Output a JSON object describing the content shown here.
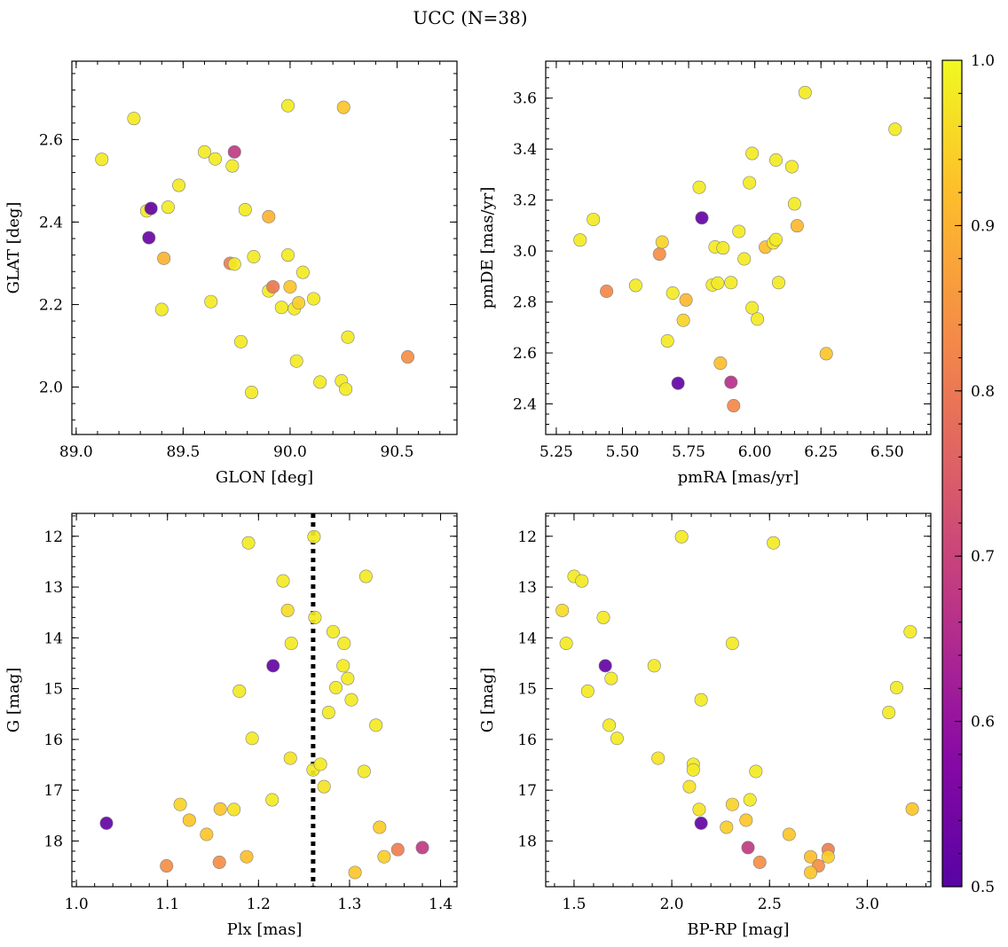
{
  "figure": {
    "title": "UCC (N=38)"
  },
  "colorbar": {
    "min": 0.5,
    "max": 1.0,
    "ticks": [
      0.5,
      0.6,
      0.7,
      0.8,
      0.9,
      1.0
    ]
  },
  "chart_data": [
    {
      "id": "radec",
      "type": "scatter",
      "xlabel": "GLON [deg]",
      "ylabel": "GLAT [deg]",
      "xlim": [
        88.98,
        90.78
      ],
      "ylim": [
        1.885,
        2.79
      ],
      "xticks": [
        89.0,
        89.5,
        90.0,
        90.5
      ],
      "xtick_decimals": 1,
      "yticks": [
        2.0,
        2.2,
        2.4,
        2.6
      ],
      "ytick_decimals": 1,
      "invert_y": false,
      "grid": false,
      "points": [
        [
          89.12,
          2.552,
          0.98
        ],
        [
          89.27,
          2.651,
          0.98
        ],
        [
          89.33,
          2.427,
          0.98
        ],
        [
          89.35,
          2.433,
          0.52
        ],
        [
          89.34,
          2.362,
          0.53
        ],
        [
          89.4,
          2.188,
          0.98
        ],
        [
          89.41,
          2.312,
          0.9
        ],
        [
          89.43,
          2.436,
          0.98
        ],
        [
          89.48,
          2.489,
          0.98
        ],
        [
          89.6,
          2.57,
          0.98
        ],
        [
          89.63,
          2.207,
          0.98
        ],
        [
          89.65,
          2.553,
          0.98
        ],
        [
          89.72,
          2.3,
          0.81
        ],
        [
          89.73,
          2.536,
          0.98
        ],
        [
          89.74,
          2.298,
          0.98
        ],
        [
          89.74,
          2.57,
          0.68
        ],
        [
          89.77,
          2.11,
          0.98
        ],
        [
          89.79,
          2.43,
          0.98
        ],
        [
          89.82,
          1.987,
          0.98
        ],
        [
          89.83,
          2.316,
          0.98
        ],
        [
          89.9,
          2.413,
          0.9
        ],
        [
          89.9,
          2.233,
          0.98
        ],
        [
          89.92,
          2.243,
          0.8
        ],
        [
          89.96,
          2.193,
          0.98
        ],
        [
          89.99,
          2.682,
          0.98
        ],
        [
          89.99,
          2.32,
          0.98
        ],
        [
          90.0,
          2.243,
          0.93
        ],
        [
          90.02,
          2.19,
          0.98
        ],
        [
          90.03,
          2.063,
          0.98
        ],
        [
          90.04,
          2.204,
          0.94
        ],
        [
          90.06,
          2.278,
          0.98
        ],
        [
          90.11,
          2.214,
          0.98
        ],
        [
          90.14,
          2.012,
          0.98
        ],
        [
          90.24,
          2.015,
          0.98
        ],
        [
          90.25,
          2.678,
          0.93
        ],
        [
          90.26,
          1.995,
          0.98
        ],
        [
          90.27,
          2.121,
          0.98
        ],
        [
          90.55,
          2.073,
          0.84
        ]
      ]
    },
    {
      "id": "pm",
      "type": "scatter",
      "xlabel": "pmRA [mas/yr]",
      "ylabel": "pmDE [mas/yr]",
      "xlim": [
        5.21,
        6.665
      ],
      "ylim": [
        2.28,
        3.745
      ],
      "xticks": [
        5.25,
        5.5,
        5.75,
        6.0,
        6.25,
        6.5
      ],
      "xtick_decimals": 2,
      "yticks": [
        2.4,
        2.6,
        2.8,
        3.0,
        3.2,
        3.4,
        3.6
      ],
      "ytick_decimals": 1,
      "invert_y": false,
      "grid": false,
      "points": [
        [
          5.34,
          3.043,
          0.98
        ],
        [
          5.39,
          3.124,
          0.98
        ],
        [
          5.44,
          2.842,
          0.83
        ],
        [
          5.55,
          2.865,
          0.98
        ],
        [
          5.64,
          2.988,
          0.84
        ],
        [
          5.65,
          3.035,
          0.95
        ],
        [
          5.67,
          2.647,
          0.98
        ],
        [
          5.69,
          2.835,
          0.98
        ],
        [
          5.71,
          2.481,
          0.52
        ],
        [
          5.73,
          2.728,
          0.95
        ],
        [
          5.74,
          2.808,
          0.91
        ],
        [
          5.79,
          3.25,
          0.98
        ],
        [
          5.8,
          3.13,
          0.52
        ],
        [
          5.84,
          2.867,
          0.98
        ],
        [
          5.85,
          3.016,
          0.98
        ],
        [
          5.86,
          2.874,
          0.98
        ],
        [
          5.87,
          2.56,
          0.92
        ],
        [
          5.88,
          3.012,
          0.98
        ],
        [
          5.91,
          2.876,
          0.98
        ],
        [
          5.91,
          2.485,
          0.66
        ],
        [
          5.92,
          2.393,
          0.83
        ],
        [
          5.94,
          3.077,
          0.98
        ],
        [
          5.96,
          2.969,
          0.98
        ],
        [
          5.98,
          3.268,
          0.98
        ],
        [
          5.99,
          2.777,
          0.98
        ],
        [
          5.99,
          3.383,
          0.98
        ],
        [
          6.01,
          2.733,
          0.98
        ],
        [
          6.04,
          3.015,
          0.92
        ],
        [
          6.07,
          3.032,
          0.98
        ],
        [
          6.08,
          3.357,
          0.98
        ],
        [
          6.08,
          3.045,
          0.98
        ],
        [
          6.09,
          2.876,
          0.98
        ],
        [
          6.14,
          3.331,
          0.98
        ],
        [
          6.15,
          3.185,
          0.98
        ],
        [
          6.16,
          3.099,
          0.91
        ],
        [
          6.19,
          3.622,
          0.98
        ],
        [
          6.27,
          2.597,
          0.93
        ],
        [
          6.53,
          3.478,
          0.98
        ]
      ]
    },
    {
      "id": "plx",
      "type": "scatter",
      "xlabel": "Plx [mas]",
      "ylabel": "G [mag]",
      "xlim": [
        0.995,
        1.418
      ],
      "ylim": [
        11.55,
        18.9
      ],
      "xticks": [
        1.0,
        1.1,
        1.2,
        1.3,
        1.4
      ],
      "xtick_decimals": 1,
      "yticks": [
        12,
        13,
        14,
        15,
        16,
        17,
        18
      ],
      "ytick_decimals": 0,
      "invert_y": true,
      "grid": false,
      "vline": 1.26,
      "points": [
        [
          1.033,
          17.65,
          0.52
        ],
        [
          1.099,
          18.49,
          0.84
        ],
        [
          1.114,
          17.28,
          0.95
        ],
        [
          1.124,
          17.59,
          0.93
        ],
        [
          1.143,
          17.87,
          0.93
        ],
        [
          1.157,
          18.42,
          0.84
        ],
        [
          1.158,
          17.37,
          0.93
        ],
        [
          1.173,
          17.38,
          0.97
        ],
        [
          1.179,
          15.05,
          0.98
        ],
        [
          1.187,
          18.31,
          0.92
        ],
        [
          1.189,
          12.13,
          0.98
        ],
        [
          1.193,
          15.98,
          0.98
        ],
        [
          1.215,
          17.19,
          0.98
        ],
        [
          1.216,
          14.55,
          0.52
        ],
        [
          1.227,
          12.88,
          0.98
        ],
        [
          1.232,
          13.46,
          0.96
        ],
        [
          1.235,
          16.37,
          0.97
        ],
        [
          1.236,
          14.11,
          0.98
        ],
        [
          1.26,
          16.6,
          0.98
        ],
        [
          1.261,
          12.01,
          0.98
        ],
        [
          1.262,
          13.6,
          0.98
        ],
        [
          1.268,
          16.49,
          0.98
        ],
        [
          1.272,
          16.93,
          0.97
        ],
        [
          1.277,
          15.47,
          0.98
        ],
        [
          1.282,
          13.88,
          0.98
        ],
        [
          1.285,
          14.98,
          0.98
        ],
        [
          1.293,
          14.55,
          0.98
        ],
        [
          1.294,
          14.11,
          0.98
        ],
        [
          1.298,
          14.8,
          0.98
        ],
        [
          1.302,
          15.22,
          0.98
        ],
        [
          1.306,
          18.62,
          0.93
        ],
        [
          1.316,
          16.63,
          0.98
        ],
        [
          1.318,
          12.79,
          0.98
        ],
        [
          1.329,
          15.72,
          0.98
        ],
        [
          1.333,
          17.73,
          0.94
        ],
        [
          1.338,
          18.31,
          0.94
        ],
        [
          1.353,
          18.17,
          0.81
        ],
        [
          1.38,
          18.13,
          0.68
        ]
      ]
    },
    {
      "id": "cmd",
      "type": "scatter",
      "xlabel": "BP-RP [mag]",
      "ylabel": "G [mag]",
      "xlim": [
        1.355,
        3.325
      ],
      "ylim": [
        11.55,
        18.9
      ],
      "xticks": [
        1.5,
        2.0,
        2.5,
        3.0
      ],
      "xtick_decimals": 1,
      "yticks": [
        12,
        13,
        14,
        15,
        16,
        17,
        18
      ],
      "ytick_decimals": 0,
      "invert_y": true,
      "grid": false,
      "points": [
        [
          2.05,
          12.01,
          0.98
        ],
        [
          2.52,
          12.13,
          0.98
        ],
        [
          1.5,
          12.79,
          0.98
        ],
        [
          1.54,
          12.88,
          0.98
        ],
        [
          1.44,
          13.46,
          0.96
        ],
        [
          1.65,
          13.6,
          0.98
        ],
        [
          3.22,
          13.88,
          0.98
        ],
        [
          1.46,
          14.11,
          0.98
        ],
        [
          2.31,
          14.11,
          0.98
        ],
        [
          1.66,
          14.55,
          0.52
        ],
        [
          1.91,
          14.55,
          0.98
        ],
        [
          1.69,
          14.8,
          0.98
        ],
        [
          3.15,
          14.98,
          0.98
        ],
        [
          1.57,
          15.05,
          0.98
        ],
        [
          2.15,
          15.22,
          0.98
        ],
        [
          3.11,
          15.47,
          0.98
        ],
        [
          1.68,
          15.72,
          0.98
        ],
        [
          1.72,
          15.98,
          0.98
        ],
        [
          1.93,
          16.37,
          0.97
        ],
        [
          2.11,
          16.49,
          0.98
        ],
        [
          2.11,
          16.6,
          0.98
        ],
        [
          2.43,
          16.63,
          0.98
        ],
        [
          2.09,
          16.93,
          0.97
        ],
        [
          2.4,
          17.19,
          0.98
        ],
        [
          2.31,
          17.28,
          0.95
        ],
        [
          3.23,
          17.37,
          0.93
        ],
        [
          2.14,
          17.38,
          0.97
        ],
        [
          2.38,
          17.59,
          0.93
        ],
        [
          2.15,
          17.65,
          0.52
        ],
        [
          2.28,
          17.73,
          0.94
        ],
        [
          2.6,
          17.87,
          0.93
        ],
        [
          2.39,
          18.13,
          0.68
        ],
        [
          2.8,
          18.17,
          0.81
        ],
        [
          2.71,
          18.31,
          0.92
        ],
        [
          2.8,
          18.31,
          0.94
        ],
        [
          2.45,
          18.42,
          0.84
        ],
        [
          2.75,
          18.49,
          0.84
        ],
        [
          2.71,
          18.62,
          0.93
        ]
      ]
    }
  ]
}
